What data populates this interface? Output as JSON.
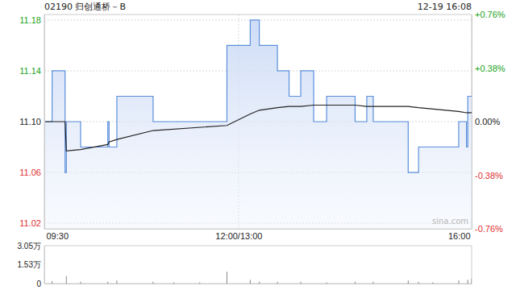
{
  "chart_data": [
    {
      "type": "line",
      "title": "02190 归创通桥－B",
      "subtitle": "12-19 16:08",
      "x": [
        0,
        6,
        16,
        17,
        28,
        49,
        50,
        56,
        84,
        141,
        159,
        166,
        180,
        189,
        198,
        208,
        218,
        240,
        249,
        254,
        281,
        289,
        320,
        326,
        327,
        330
      ],
      "xlim": [
        0,
        330
      ],
      "xticks": [
        {
          "value": 0,
          "label": "09:30"
        },
        {
          "value": 150,
          "label": "12:00/13:00"
        },
        {
          "value": 330,
          "label": "16:00"
        }
      ],
      "ylim": [
        11.0156,
        11.1844
      ],
      "yticks": [
        11.02,
        11.06,
        {
          "value": 11.1,
          "label": "11.10"
        },
        11.14,
        11.18
      ],
      "y2lim": [
        -0.76,
        0.76
      ],
      "y2ticks": [
        {
          "value": -0.76,
          "label": "-0.76%"
        },
        {
          "value": -0.38,
          "label": "-0.38%"
        },
        {
          "value": 0,
          "label": "0.00%"
        },
        {
          "value": 0.38,
          "label": "+0.38%"
        },
        {
          "value": 0.76,
          "label": "+0.76%"
        }
      ],
      "grid": true,
      "series": [
        {
          "color": "#5b8fdc",
          "line_style": "step",
          "values": [
            11.1,
            11.14,
            11.06,
            11.1,
            11.08,
            11.1,
            11.08,
            11.12,
            11.1,
            11.16,
            11.18,
            11.16,
            11.14,
            11.12,
            11.14,
            11.1,
            11.12,
            11.1,
            11.12,
            11.1,
            11.06,
            11.08,
            11.1,
            11.08,
            11.12,
            11.12
          ]
        },
        {
          "color": "#222222",
          "line_style": "solid",
          "values": [
            11.1,
            11.1,
            11.1,
            11.077,
            11.078,
            11.082,
            11.084,
            11.086,
            11.093,
            11.097,
            11.106,
            11.109,
            11.111,
            11.112,
            11.112,
            11.113,
            11.113,
            11.113,
            11.112,
            11.112,
            11.112,
            11.111,
            11.108,
            11.107,
            11.107,
            11.107
          ]
        }
      ]
    },
    {
      "type": "bar",
      "color": "#888888",
      "tick_labels": "y",
      "annotations": [
        "sina.com"
      ],
      "x": [
        0,
        6,
        17,
        28,
        49,
        56,
        84,
        100,
        120,
        141,
        159,
        166,
        180,
        198,
        218,
        240,
        254,
        281,
        289,
        300,
        320,
        327,
        330
      ],
      "values": [
        3000,
        2000,
        6000,
        1500,
        1500,
        2500,
        1500,
        1000,
        1000,
        9500,
        3000,
        1500,
        1500,
        1500,
        1000,
        1500,
        1500,
        2500,
        1500,
        1000,
        2500,
        3000,
        4000
      ],
      "xlim": [
        0,
        330
      ],
      "ylim": [
        0,
        30500
      ],
      "yticks": [
        0,
        {
          "value": 15300,
          "label": "1.53万"
        },
        {
          "value": 30500,
          "label": "3.05万"
        }
      ]
    }
  ]
}
